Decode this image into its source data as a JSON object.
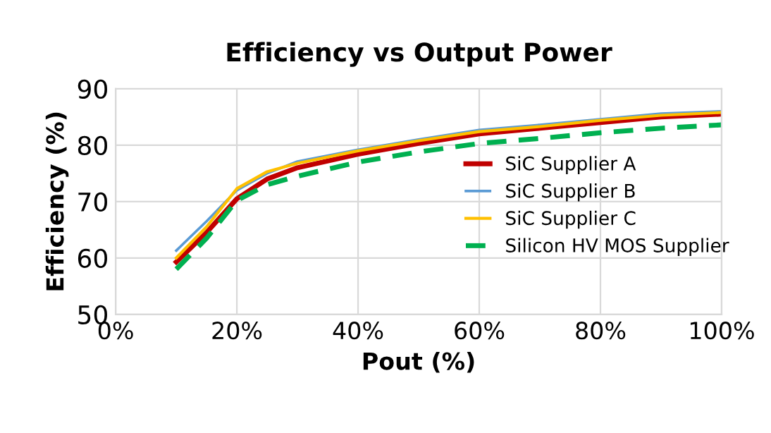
{
  "chart_data": {
    "type": "line",
    "title": "Efficiency vs Output Power",
    "xlabel": "Pout (%)",
    "ylabel": "Efficiency (%)",
    "x": [
      10,
      15,
      20,
      25,
      30,
      40,
      50,
      60,
      70,
      80,
      90,
      100
    ],
    "series": [
      {
        "name": "SiC Supplier A",
        "color": "#c00000",
        "values": [
          59.3,
          64.5,
          70.5,
          74,
          76,
          78.4,
          80.3,
          82,
          83,
          84,
          85,
          85.5
        ]
      },
      {
        "name": "SiC Supplier B",
        "color": "#5b9bd5",
        "values": [
          61.3,
          66.5,
          72,
          75,
          77.1,
          79.2,
          81,
          82.7,
          83.6,
          84.6,
          85.6,
          86
        ]
      },
      {
        "name": "SiC Supplier C",
        "color": "#ffc000",
        "values": [
          60,
          65.5,
          72.3,
          75.3,
          76.8,
          79,
          80.8,
          82.4,
          83.3,
          84.4,
          85.3,
          85.8
        ]
      },
      {
        "name": "Silicon HV MOS Supplier",
        "color": "#00b050",
        "line_style": "dashed",
        "values": [
          58,
          63.5,
          70.2,
          73,
          74.5,
          77,
          78.8,
          80.3,
          81.2,
          82.2,
          83,
          83.6
        ]
      }
    ],
    "xlim": [
      0,
      100
    ],
    "xticks": [
      {
        "value": 0,
        "label": "0%"
      },
      {
        "value": 20,
        "label": "20%"
      },
      {
        "value": 40,
        "label": "40%"
      },
      {
        "value": 60,
        "label": "60%"
      },
      {
        "value": 80,
        "label": "80%"
      },
      {
        "value": 100,
        "label": "100%"
      }
    ],
    "ylim": [
      50,
      90
    ],
    "yticks": [
      50,
      60,
      70,
      80,
      90
    ],
    "grid": true,
    "legend": "right",
    "marker": "none",
    "line_style": "solid"
  }
}
